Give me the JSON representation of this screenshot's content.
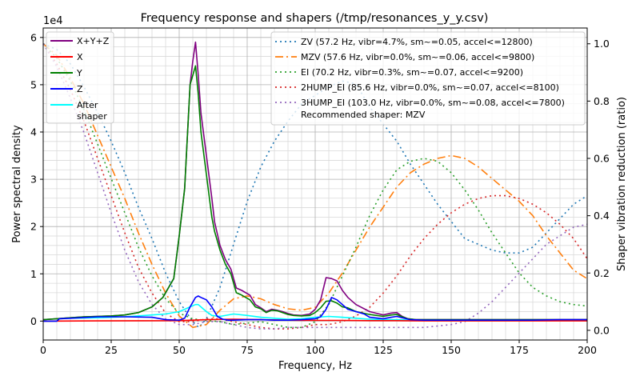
{
  "chart_data": {
    "type": "line",
    "title": "Frequency response and shapers (/tmp/resonances_y_y.csv)",
    "xlabel": "Frequency, Hz",
    "ylabel": "Power spectral density",
    "y2label": "Shaper vibration reduction (ratio)",
    "y_multiplier": "1e4",
    "xlim": [
      0,
      200
    ],
    "ylim": [
      -4000,
      62000
    ],
    "y2lim": [
      -0.0338,
      1.0551
    ],
    "xticks": [
      "0",
      "25",
      "50",
      "75",
      "100",
      "125",
      "150",
      "175",
      "200"
    ],
    "yticks": [
      "0",
      "1",
      "2",
      "3",
      "4",
      "5",
      "6"
    ],
    "y2ticks": [
      "0.0",
      "0.2",
      "0.4",
      "0.6",
      "0.8",
      "1.0"
    ],
    "grid": true,
    "legend_left_position": "upper-left",
    "legend_right_position": "upper-right",
    "psd_series": [
      {
        "name": "X+Y+Z",
        "color": "#800080",
        "x": [
          0,
          5,
          10,
          15,
          20,
          25,
          30,
          35,
          40,
          44,
          48,
          50,
          52,
          54,
          55,
          56,
          57,
          58,
          60,
          62,
          63,
          65,
          67,
          69,
          71,
          73,
          76,
          78,
          80,
          82,
          84,
          86,
          88,
          90,
          92,
          95,
          98,
          100,
          102,
          104,
          106,
          108,
          110,
          112,
          115,
          120,
          125,
          128,
          130,
          132,
          134,
          137,
          140,
          150,
          160,
          170,
          180,
          190,
          200
        ],
        "y": [
          300,
          500,
          700,
          900,
          1000,
          1100,
          1300,
          1800,
          3000,
          5000,
          9000,
          18000,
          28000,
          50000,
          55000,
          59000,
          52000,
          44000,
          35000,
          26000,
          21000,
          16000,
          13000,
          11000,
          7000,
          6500,
          5500,
          3500,
          2800,
          2000,
          2500,
          2300,
          2000,
          1600,
          1300,
          1200,
          1500,
          2500,
          4500,
          9200,
          9000,
          8500,
          6500,
          5000,
          3500,
          2000,
          1300,
          1700,
          1800,
          1000,
          500,
          300,
          300,
          300,
          300,
          300,
          300,
          300,
          300
        ]
      },
      {
        "name": "X",
        "color": "#ff0000",
        "x": [
          0,
          20,
          50,
          60,
          70,
          80,
          90,
          100,
          110,
          120,
          130,
          140,
          150,
          200
        ],
        "y": [
          0,
          50,
          100,
          300,
          400,
          300,
          200,
          150,
          150,
          100,
          100,
          50,
          50,
          50
        ]
      },
      {
        "name": "Y",
        "color": "#008000",
        "x": [
          0,
          5,
          10,
          15,
          20,
          25,
          30,
          35,
          40,
          44,
          48,
          50,
          52,
          54,
          55,
          56,
          57,
          58,
          60,
          62,
          63,
          65,
          67,
          69,
          71,
          73,
          76,
          78,
          80,
          82,
          84,
          86,
          88,
          90,
          92,
          95,
          98,
          100,
          102,
          104,
          106,
          108,
          110,
          112,
          115,
          120,
          125,
          128,
          130,
          132,
          134,
          137,
          140,
          150,
          160,
          170,
          180,
          190,
          200
        ],
        "y": [
          300,
          500,
          700,
          900,
          1000,
          1100,
          1300,
          1800,
          3000,
          5000,
          9000,
          18000,
          28000,
          50000,
          52000,
          54000,
          48000,
          40000,
          31000,
          22000,
          19000,
          15000,
          12000,
          10000,
          6000,
          5500,
          4500,
          3000,
          2600,
          1800,
          2300,
          2200,
          1800,
          1400,
          1200,
          1100,
          1200,
          1800,
          2800,
          4200,
          4300,
          3800,
          3000,
          2800,
          2000,
          1400,
          1000,
          1300,
          1400,
          900,
          500,
          300,
          300,
          300,
          300,
          300,
          300,
          300,
          300
        ]
      },
      {
        "name": "Z",
        "color": "#0000ff",
        "x": [
          0,
          5,
          6,
          10,
          20,
          30,
          40,
          45,
          50,
          52,
          54,
          56,
          57,
          58,
          60,
          62,
          64,
          66,
          68,
          70,
          75,
          80,
          85,
          90,
          95,
          100,
          102,
          104,
          106,
          108,
          110,
          112,
          115,
          118,
          120,
          125,
          128,
          130,
          132,
          135,
          140,
          150,
          160,
          170,
          180,
          190,
          200
        ],
        "y": [
          0,
          0,
          500,
          600,
          900,
          900,
          800,
          300,
          200,
          600,
          3000,
          5000,
          5300,
          5000,
          4500,
          3000,
          1000,
          400,
          200,
          200,
          300,
          300,
          200,
          200,
          300,
          500,
          900,
          2500,
          5000,
          4500,
          3500,
          2500,
          2000,
          1500,
          800,
          500,
          800,
          1000,
          700,
          300,
          200,
          200,
          200,
          200,
          200,
          300,
          300
        ]
      },
      {
        "name": "After\nshaper",
        "color": "#00ffff",
        "x": [
          0,
          5,
          6,
          10,
          20,
          30,
          40,
          45,
          50,
          52,
          54,
          56,
          57,
          58,
          60,
          62,
          65,
          70,
          75,
          80,
          85,
          90,
          95,
          100,
          105,
          110,
          115,
          120,
          125,
          130,
          135,
          140,
          150,
          170,
          190,
          200
        ],
        "y": [
          0,
          0,
          500,
          600,
          700,
          900,
          1300,
          1500,
          2000,
          2500,
          3000,
          3500,
          3500,
          3000,
          2000,
          1200,
          1000,
          1500,
          1200,
          800,
          600,
          400,
          500,
          800,
          1000,
          800,
          600,
          400,
          300,
          300,
          200,
          100,
          50,
          50,
          150,
          200
        ]
      }
    ],
    "shaper_series": [
      {
        "name": "ZV (57.2 Hz, vibr=4.7%, sm~=0.05, accel<=12800)",
        "color": "#1f77b4",
        "dash": "2,4",
        "x": [
          0,
          5,
          10,
          15,
          20,
          25,
          30,
          35,
          40,
          45,
          50,
          55,
          57.2,
          60,
          65,
          70,
          75,
          80,
          85,
          90,
          95,
          100,
          105,
          110,
          115,
          120,
          125,
          130,
          135,
          140,
          145,
          150,
          155,
          160,
          165,
          170,
          175,
          180,
          185,
          190,
          195,
          200
        ],
        "y": [
          1,
          0.98,
          0.93,
          0.85,
          0.76,
          0.66,
          0.55,
          0.43,
          0.32,
          0.2,
          0.1,
          0.03,
          0.01,
          0.04,
          0.15,
          0.3,
          0.45,
          0.57,
          0.66,
          0.73,
          0.79,
          0.82,
          0.85,
          0.87,
          0.86,
          0.78,
          0.72,
          0.66,
          0.58,
          0.51,
          0.44,
          0.38,
          0.32,
          0.3,
          0.28,
          0.27,
          0.27,
          0.29,
          0.34,
          0.39,
          0.44,
          0.47
        ]
      },
      {
        "name": "MZV (57.6 Hz, vibr=0.0%, sm~=0.06, accel<=9800)",
        "color": "#ff7f0e",
        "dash": "10,4,2,4",
        "x": [
          0,
          5,
          10,
          15,
          20,
          25,
          30,
          35,
          40,
          45,
          50,
          55,
          60,
          65,
          70,
          75,
          80,
          85,
          90,
          95,
          100,
          105,
          110,
          115,
          120,
          125,
          130,
          135,
          140,
          145,
          150,
          155,
          160,
          165,
          170,
          175,
          180,
          185,
          190,
          195,
          200
        ],
        "y": [
          1,
          0.96,
          0.88,
          0.79,
          0.68,
          0.57,
          0.46,
          0.34,
          0.23,
          0.13,
          0.05,
          0.01,
          0.02,
          0.07,
          0.11,
          0.12,
          0.11,
          0.09,
          0.075,
          0.07,
          0.08,
          0.13,
          0.2,
          0.28,
          0.36,
          0.43,
          0.5,
          0.55,
          0.58,
          0.6,
          0.61,
          0.6,
          0.57,
          0.53,
          0.49,
          0.45,
          0.4,
          0.33,
          0.27,
          0.21,
          0.18
        ]
      },
      {
        "name": "EI (70.2 Hz, vibr=0.3%, sm~=0.07, accel<=9200)",
        "color": "#2ca02c",
        "dash": "2,4",
        "x": [
          0,
          5,
          10,
          15,
          20,
          25,
          30,
          35,
          40,
          45,
          50,
          55,
          60,
          65,
          70,
          75,
          80,
          85,
          90,
          95,
          100,
          105,
          110,
          115,
          120,
          125,
          130,
          135,
          140,
          145,
          150,
          155,
          160,
          165,
          170,
          175,
          180,
          185,
          190,
          195,
          200
        ],
        "y": [
          1,
          0.95,
          0.87,
          0.77,
          0.65,
          0.53,
          0.41,
          0.29,
          0.19,
          0.11,
          0.06,
          0.04,
          0.035,
          0.03,
          0.02,
          0.025,
          0.03,
          0.02,
          0.01,
          0.01,
          0.03,
          0.09,
          0.19,
          0.29,
          0.4,
          0.49,
          0.56,
          0.59,
          0.6,
          0.59,
          0.55,
          0.49,
          0.42,
          0.34,
          0.27,
          0.2,
          0.15,
          0.12,
          0.1,
          0.09,
          0.085
        ]
      },
      {
        "name": "2HUMP_EI (85.6 Hz, vibr=0.0%, sm~=0.07, accel<=8100)",
        "color": "#d62728",
        "dash": "2,4",
        "x": [
          0,
          5,
          10,
          15,
          20,
          25,
          30,
          35,
          40,
          45,
          50,
          55,
          60,
          65,
          70,
          75,
          80,
          85,
          90,
          95,
          100,
          105,
          110,
          115,
          120,
          125,
          130,
          135,
          140,
          145,
          150,
          155,
          160,
          165,
          170,
          175,
          180,
          185,
          190,
          195,
          200
        ],
        "y": [
          1,
          0.93,
          0.84,
          0.73,
          0.6,
          0.47,
          0.34,
          0.22,
          0.13,
          0.06,
          0.03,
          0.03,
          0.04,
          0.04,
          0.03,
          0.02,
          0.01,
          0.005,
          0.005,
          0.01,
          0.02,
          0.02,
          0.03,
          0.05,
          0.08,
          0.13,
          0.19,
          0.26,
          0.32,
          0.37,
          0.41,
          0.44,
          0.46,
          0.47,
          0.47,
          0.46,
          0.44,
          0.41,
          0.37,
          0.32,
          0.25
        ]
      },
      {
        "name": "3HUMP_EI (103.0 Hz, vibr=0.0%, sm~=0.08, accel<=7800)",
        "color": "#9467bd",
        "dash": "2,4",
        "x": [
          0,
          5,
          10,
          15,
          20,
          25,
          30,
          35,
          40,
          45,
          50,
          55,
          60,
          65,
          70,
          75,
          80,
          85,
          90,
          95,
          100,
          105,
          110,
          115,
          120,
          125,
          130,
          135,
          140,
          145,
          150,
          155,
          160,
          165,
          170,
          175,
          180,
          185,
          190,
          195,
          200
        ],
        "y": [
          1,
          0.92,
          0.81,
          0.69,
          0.55,
          0.41,
          0.28,
          0.17,
          0.09,
          0.04,
          0.02,
          0.02,
          0.03,
          0.03,
          0.02,
          0.01,
          0.005,
          0.005,
          0.01,
          0.01,
          0.01,
          0.01,
          0.01,
          0.01,
          0.01,
          0.01,
          0.01,
          0.01,
          0.01,
          0.015,
          0.02,
          0.03,
          0.06,
          0.1,
          0.15,
          0.2,
          0.25,
          0.3,
          0.33,
          0.36,
          0.37
        ]
      }
    ],
    "recommended_text": "Recommended shaper: MZV"
  }
}
